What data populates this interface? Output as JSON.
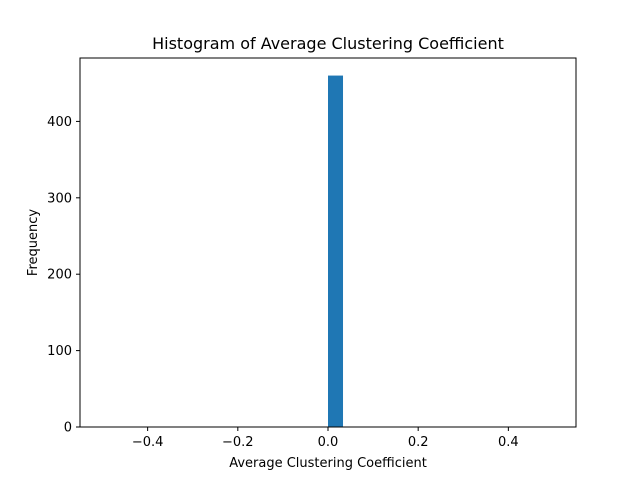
{
  "chart_data": {
    "type": "bar",
    "title": "Histogram of Average Clustering Coefficient",
    "xlabel": "Average Clustering Coefficient",
    "ylabel": "Frequency",
    "xlim": [
      -0.55,
      0.55
    ],
    "ylim": [
      0,
      483
    ],
    "xticks": [
      -0.4,
      -0.2,
      0.0,
      0.2,
      0.4
    ],
    "xtick_labels": [
      "−0.4",
      "−0.2",
      "0.0",
      "0.2",
      "0.4"
    ],
    "yticks": [
      0,
      100,
      200,
      300,
      400
    ],
    "ytick_labels": [
      "0",
      "100",
      "200",
      "300",
      "400"
    ],
    "grid": false,
    "bins": [
      {
        "x0": 0.0,
        "x1": 0.0333,
        "value": 460
      }
    ],
    "colors": {
      "bar": "#1f77b4",
      "axes": "#000000",
      "background": "#ffffff"
    }
  }
}
